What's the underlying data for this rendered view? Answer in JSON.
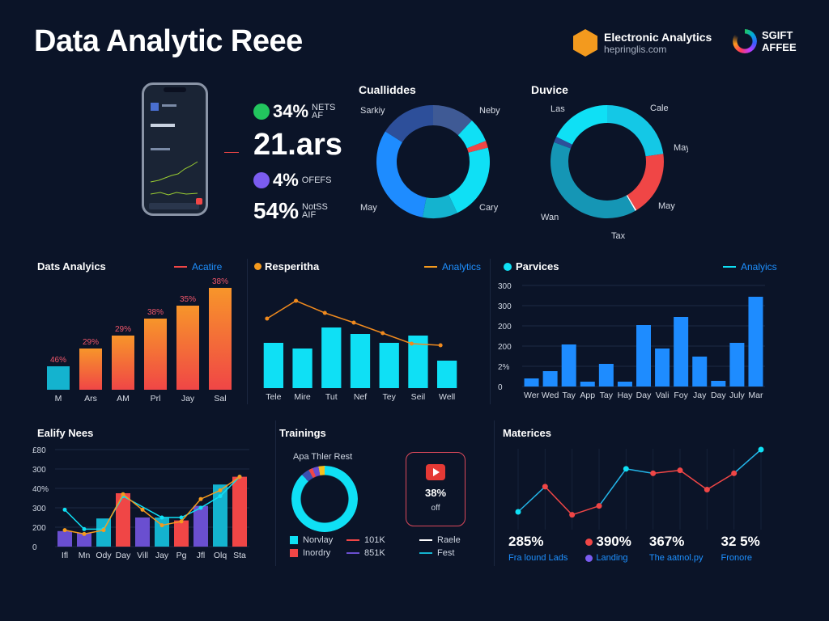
{
  "header": {
    "title": "Data Analytic Reee",
    "brand_name": "Electronic Analytics",
    "brand_url": "hepringlis.com",
    "brand2_line1": "SGIFT",
    "brand2_line2": "AFFEE"
  },
  "colors": {
    "bg": "#0b1428",
    "cyan": "#0fe0f5",
    "blue": "#1e8cff",
    "red": "#f04646",
    "orange": "#f59a1e",
    "purple": "#6a4fd0",
    "teal": "#14b3cf"
  },
  "kpis": [
    {
      "value": "34%",
      "unit1": "NEТS",
      "unit2": "AF",
      "icon": "green-badge-icon",
      "color": "#22c55e"
    },
    {
      "value": "21.ars",
      "unit1": "",
      "unit2": ""
    },
    {
      "value": "4%",
      "unit1": "OFEFS",
      "unit2": "",
      "icon": "purple-triangle-icon",
      "color": "#7b5cf0"
    },
    {
      "value": "54%",
      "unit1": "NotSS",
      "unit2": "AIF"
    }
  ],
  "chart_data": [
    {
      "id": "cualliddes",
      "type": "pie",
      "title": "Cualliddes",
      "labels": [
        "Sarkiy",
        "Neby",
        "Cary",
        "May"
      ],
      "slices": [
        {
          "value": 12,
          "color": "#3f5a95"
        },
        {
          "value": 7,
          "color": "#0fe0f5"
        },
        {
          "value": 2,
          "color": "#f04646"
        },
        {
          "value": 22,
          "color": "#0fe0f5"
        },
        {
          "value": 10,
          "color": "#14b3cf"
        },
        {
          "value": 31,
          "color": "#1e8cff"
        },
        {
          "value": 16,
          "color": "#2d4f9a"
        }
      ]
    },
    {
      "id": "duvice",
      "type": "pie",
      "title": "Duvice",
      "labels": [
        "Las",
        "Cale",
        "May",
        "May",
        "Tax",
        "Wan"
      ],
      "slices": [
        {
          "value": 27,
          "color": "#14c8e6"
        },
        {
          "value": 22,
          "color": "#f04646"
        },
        {
          "value": 0.5,
          "color": "#ffffff"
        },
        {
          "value": 46,
          "color": "#1596b5"
        },
        {
          "value": 2,
          "color": "#2d4f9a"
        },
        {
          "value": 21,
          "color": "#0fe0f5"
        }
      ]
    },
    {
      "id": "data-analytics",
      "type": "bar",
      "title": "Dats Analyics",
      "legend": "Acatire",
      "categories": [
        "M",
        "Ars",
        "AM",
        "Prl",
        "Jay",
        "Sal"
      ],
      "values": [
        29,
        51,
        67,
        88,
        104,
        126
      ],
      "data_labels": [
        "46%",
        "29%",
        "29%",
        "38%",
        "35%",
        "38%"
      ]
    },
    {
      "id": "resperitha",
      "type": "bar",
      "title": "Resperitha",
      "legend": "Analytics",
      "categories": [
        "Tele",
        "Mire",
        "Tut",
        "Nef",
        "Tey",
        "Seil",
        "Well"
      ],
      "values": [
        56,
        49,
        75,
        67,
        56,
        65,
        34
      ],
      "line": [
        86,
        108,
        93,
        81,
        68,
        55,
        53
      ]
    },
    {
      "id": "parvices",
      "type": "bar",
      "title": "Parvices",
      "legend": "Analyics",
      "categories": [
        "Wer",
        "Wed",
        "Tay",
        "App",
        "Tay",
        "Hay",
        "Day",
        "Vali",
        "Foy",
        "Jay",
        "Day",
        "July",
        "Mar"
      ],
      "values": [
        20,
        38,
        104,
        12,
        56,
        12,
        152,
        94,
        172,
        74,
        14,
        108,
        222
      ],
      "yticks": [
        "0",
        "2%",
        "200",
        "200",
        "300",
        "300"
      ],
      "ylim": [
        0,
        250
      ],
      "grid": true
    },
    {
      "id": "ealify-nees",
      "type": "bar",
      "title": "Ealify Nees",
      "categories": [
        "Ifl",
        "Mn",
        "Ody",
        "Day",
        "Vill",
        "Jay",
        "Pg",
        "Jfl",
        "Olq",
        "Sta"
      ],
      "values": [
        0.8,
        0.7,
        1.45,
        2.75,
        1.5,
        1.5,
        1.35,
        2.1,
        3.2,
        3.6
      ],
      "bar_colors": [
        "#6a4fd0",
        "#6a4fd0",
        "#14b3cf",
        "#f04646",
        "#6a4fd0",
        "#14b3cf",
        "#f04646",
        "#6a4fd0",
        "#14b3cf",
        "#f04646"
      ],
      "line_cyan": [
        1.9,
        0.9,
        0.9,
        2.6,
        null,
        1.5,
        1.5,
        2.0,
        2.6,
        3.6
      ],
      "line_orange": [
        0.85,
        0.65,
        0.85,
        2.7,
        1.9,
        1.1,
        1.3,
        2.45,
        2.9,
        3.6
      ],
      "yticks": [
        "0",
        "200",
        "300",
        "40%",
        "300",
        "£80"
      ],
      "ylim": [
        0,
        5
      ],
      "grid": true
    },
    {
      "id": "materices",
      "type": "line",
      "title": "Materices",
      "values": [
        1.2,
        2.9,
        1.0,
        1.6,
        4.1,
        3.8,
        4.0,
        2.7,
        3.8,
        5.4
      ],
      "point_colors": [
        "#0fe0f5",
        "#f04646",
        "#f04646",
        "#f04646",
        "#0fe0f5",
        "#f04646",
        "#f04646",
        "#f04646",
        "#f04646",
        "#0fe0f5"
      ],
      "ylim": [
        0,
        6
      ]
    }
  ],
  "trainings": {
    "title": "Trainings",
    "donut_label": "Apa Thler Rest",
    "promo_value": "38%",
    "promo_sub": "off",
    "legend": [
      {
        "label": "Norvlay",
        "color": "#0fe0f5",
        "type": "box"
      },
      {
        "label": "101K",
        "color": "#f04646",
        "type": "line"
      },
      {
        "label": "Raele",
        "color": "#ffffff",
        "type": "line"
      },
      {
        "label": "Inordry",
        "color": "#f04646",
        "type": "box"
      },
      {
        "label": "851K",
        "color": "#6a4fd0",
        "type": "line"
      },
      {
        "label": "Fest",
        "color": "#14b3cf",
        "type": "line"
      }
    ]
  },
  "materices_stats": [
    {
      "value": "285%",
      "label": "Fra lound Lads"
    },
    {
      "value": "390%",
      "label": "Landing",
      "dot": "#f04646",
      "dot2": "#7b5cf0"
    },
    {
      "value": "367%",
      "label": "The aatnol.py"
    },
    {
      "value": "32 5%",
      "label": "Fronore"
    }
  ]
}
